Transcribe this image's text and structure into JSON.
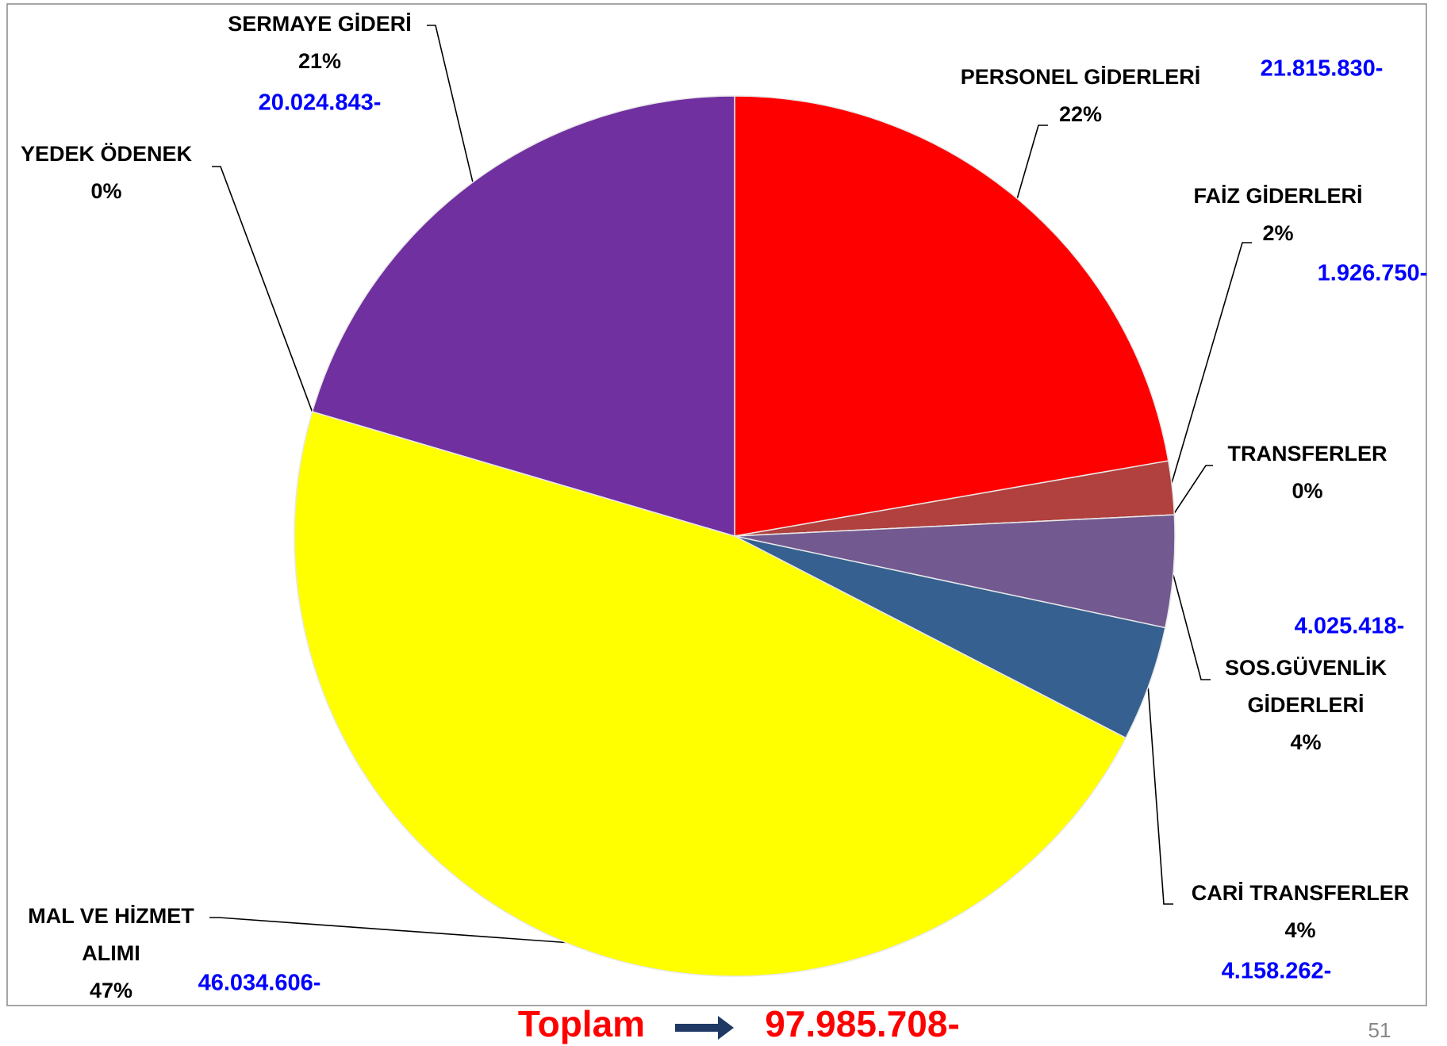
{
  "chart_data": {
    "type": "pie",
    "categories": [
      [
        "PERSONEL GİDERLERİ"
      ],
      [
        "FAİZ GİDERLERİ"
      ],
      [
        "TRANSFERLER"
      ],
      [
        "SOS.GÜVENLİK",
        "GİDERLERİ"
      ],
      [
        "CARİ TRANSFERLER"
      ],
      [
        "MAL VE HİZMET",
        "ALIMI"
      ],
      [
        "YEDEK ÖDENEK"
      ],
      [
        "SERMAYE GİDERİ"
      ]
    ],
    "values": [
      21815830,
      1926750,
      0,
      4025418,
      4158262,
      46034606,
      0,
      20024843
    ],
    "value_labels": [
      "21.815.830-",
      "1.926.750-",
      null,
      "4.025.418-",
      "4.158.262-",
      "46.034.606-",
      null,
      "20.024.843-"
    ],
    "percent_labels": [
      "22%",
      "2%",
      "0%",
      "4%",
      "4%",
      "47%",
      "0%",
      "21%"
    ],
    "colors": [
      "#ff0000",
      "#b0413e",
      "#4f81bd",
      "#725990",
      "#35608f",
      "#ffff00",
      "#8064a2",
      "#7030a0"
    ],
    "total_label": "Toplam",
    "total": 97985708,
    "total_value_label": "97.985.708-"
  },
  "page_number": 51
}
